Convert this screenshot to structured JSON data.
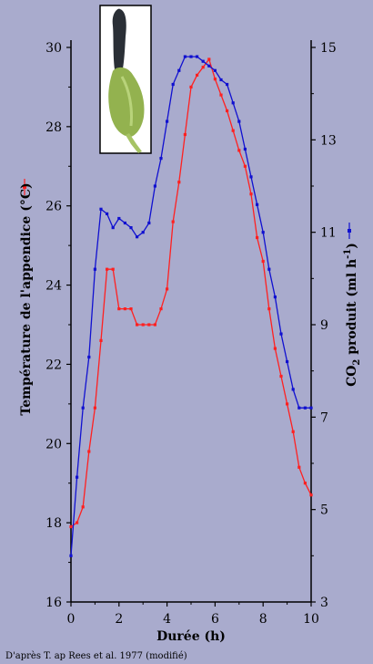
{
  "credit": "D'après T. ap Rees et al. 1977 (modifié)",
  "chart_data": {
    "type": "line",
    "xlabel": "Durée (h)",
    "ylabel_left": "Température de l'appendice (°C)",
    "ylabel_right_parts": [
      "CO",
      "2",
      " produit (ml h",
      "-1",
      ")"
    ],
    "xlim": [
      0,
      10
    ],
    "ylim_left": [
      16,
      30
    ],
    "ylim_right": [
      3,
      15
    ],
    "x_ticks": [
      "0",
      "2",
      "4",
      "6",
      "8",
      "10"
    ],
    "y_left_ticks": [
      "16",
      "18",
      "20",
      "22",
      "24",
      "26",
      "28",
      "30"
    ],
    "y_right_ticks": [
      "3",
      "5",
      "7",
      "9",
      "11",
      "13",
      "15"
    ],
    "series": [
      {
        "axis": "left",
        "color": "#ff2020",
        "x": [
          0,
          0.25,
          0.5,
          0.75,
          1.0,
          1.25,
          1.5,
          1.75,
          2.0,
          2.25,
          2.5,
          2.75,
          3.0,
          3.25,
          3.5,
          3.75,
          4.0,
          4.25,
          4.5,
          4.75,
          5.0,
          5.25,
          5.5,
          5.75,
          6.0,
          6.25,
          6.5,
          6.75,
          7.0,
          7.25,
          7.5,
          7.75,
          8.0,
          8.25,
          8.5,
          8.75,
          9.0,
          9.25,
          9.5,
          9.75,
          10.0
        ],
        "values": [
          17.9,
          18.0,
          18.4,
          19.8,
          20.9,
          22.6,
          24.4,
          24.4,
          23.4,
          23.4,
          23.4,
          23.0,
          23.0,
          23.0,
          23.0,
          23.4,
          23.9,
          25.6,
          26.6,
          27.8,
          29.0,
          29.3,
          29.5,
          29.7,
          29.2,
          28.8,
          28.4,
          27.9,
          27.4,
          27.0,
          26.3,
          25.2,
          24.6,
          23.4,
          22.4,
          21.7,
          21.0,
          20.3,
          19.4,
          19.0,
          18.7
        ],
        "marker_legend": "red-dot-marker"
      },
      {
        "axis": "right",
        "color": "#1010d0",
        "x": [
          0,
          0.25,
          0.5,
          0.75,
          1.0,
          1.25,
          1.5,
          1.75,
          2.0,
          2.25,
          2.5,
          2.75,
          3.0,
          3.25,
          3.5,
          3.75,
          4.0,
          4.25,
          4.5,
          4.75,
          5.0,
          5.25,
          5.5,
          5.75,
          6.0,
          6.25,
          6.5,
          6.75,
          7.0,
          7.25,
          7.5,
          7.75,
          8.0,
          8.25,
          8.5,
          8.75,
          9.0,
          9.25,
          9.5,
          9.75,
          10.0
        ],
        "values": [
          4.0,
          5.7,
          7.2,
          8.3,
          10.2,
          11.5,
          11.4,
          11.1,
          11.3,
          11.2,
          11.1,
          10.9,
          11.0,
          11.2,
          12.0,
          12.6,
          13.4,
          14.2,
          14.5,
          14.8,
          14.8,
          14.8,
          14.7,
          14.6,
          14.5,
          14.3,
          14.2,
          13.8,
          13.4,
          12.8,
          12.2,
          11.6,
          11.0,
          10.2,
          9.6,
          8.8,
          8.2,
          7.6,
          7.2,
          7.2,
          7.2
        ],
        "marker_legend": "blue-dot-marker"
      }
    ]
  }
}
